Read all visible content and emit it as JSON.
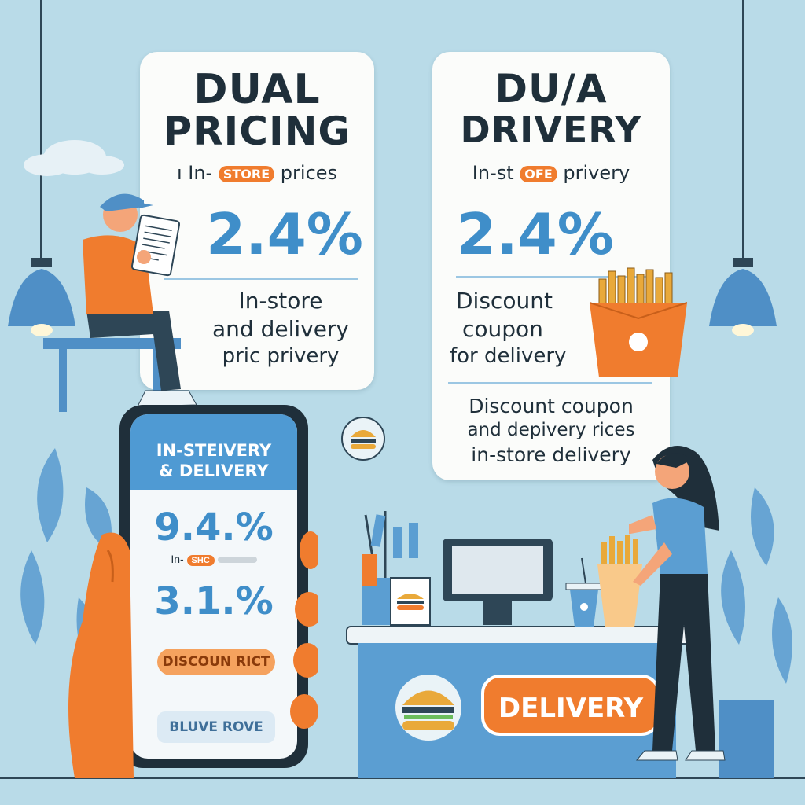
{
  "left_card": {
    "title_line1": "DUAL",
    "title_line2": "PRICING",
    "subtitle_pre": "ı In-",
    "subtitle_badge": "STORE",
    "subtitle_post": "prices",
    "percent": "2.4%",
    "body_line1": "In-store",
    "body_line2": "and delivery",
    "body_line3": "pric  privery"
  },
  "right_card": {
    "title_line1": "DU/A",
    "title_line2": "DRIVERY",
    "subtitle_pre": "In-st",
    "subtitle_badge": "OFE",
    "subtitle_post": "privery",
    "percent": "2.4%",
    "body_line1": "Discount",
    "body_line2": "coupon",
    "body_line3": "for delivery",
    "footer_line1": "Discount coupon",
    "footer_line2": "and depivery rices",
    "footer_line3": "in-store    delivery"
  },
  "phone": {
    "header_line1": "IN-STEIVERY",
    "header_line2": "& DELIVERY",
    "percent1": "9.4.%",
    "small_pre": "In-",
    "small_badge": "SHC",
    "percent2": "3.1.%",
    "discount_label": "DISCOUN RICT",
    "bottom_button": "BLUVE ROVE"
  },
  "counter": {
    "delivery_label": "DELIVERY"
  },
  "colors": {
    "background": "#b9dbe8",
    "accent_blue": "#3f8ec9",
    "accent_orange": "#f07c2e",
    "card": "#fbfcfa",
    "dark": "#1f2f3a"
  },
  "icons": [
    "burger-icon",
    "fries-box-icon",
    "lamp-icon",
    "leaf-icon",
    "cup-icon",
    "monitor-icon"
  ]
}
